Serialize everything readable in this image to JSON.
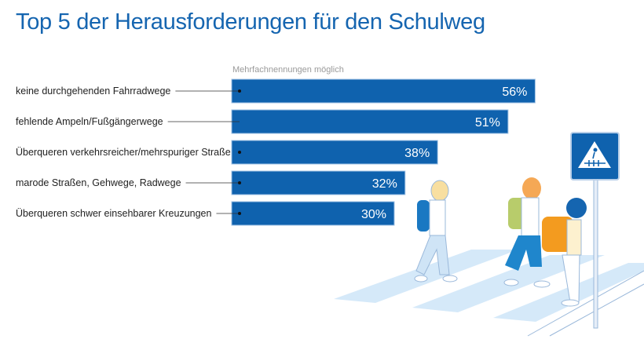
{
  "title": "Top 5 der Herausforderungen für den Schulweg",
  "chart_data": {
    "type": "bar",
    "orientation": "horizontal",
    "title": "Top 5 der Herausforderungen für den Schulweg",
    "note": "Mehrfachnennungen möglich",
    "categories": [
      "keine durchgehenden Fahrradwege",
      "fehlende Ampeln/Fußgängerwege",
      "Überqueren verkehrsreicher/mehrspuriger Straßen",
      "marode Straßen, Gehwege, Radwege",
      "Überqueren schwer einsehbarer Kreuzungen"
    ],
    "values": [
      56,
      51,
      38,
      32,
      30
    ],
    "value_labels": [
      "56%",
      "51%",
      "38%",
      "32%",
      "30%"
    ],
    "unit": "%",
    "bar_color": "#0f62ae",
    "grid": false,
    "legend": "none"
  },
  "illustration": "schoolchildren-crossing-zebra-crosswalk-with-pedestrian-sign"
}
